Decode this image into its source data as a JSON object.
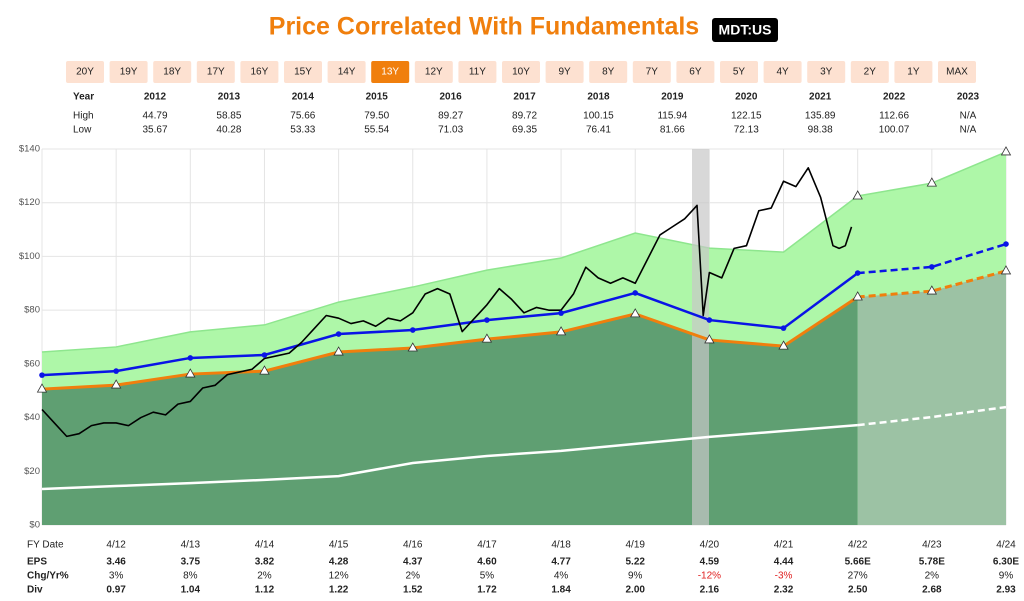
{
  "title": "Price Correlated With Fundamentals",
  "ticker": "MDT:US",
  "range_buttons": {
    "labels": [
      "20Y",
      "19Y",
      "18Y",
      "17Y",
      "16Y",
      "15Y",
      "14Y",
      "13Y",
      "12Y",
      "11Y",
      "10Y",
      "9Y",
      "8Y",
      "7Y",
      "6Y",
      "5Y",
      "4Y",
      "3Y",
      "2Y",
      "1Y",
      "MAX"
    ],
    "selected_index": 7
  },
  "year_table": {
    "header": "Year",
    "years": [
      "2012",
      "2013",
      "2014",
      "2015",
      "2016",
      "2017",
      "2018",
      "2019",
      "2020",
      "2021",
      "2022",
      "2023"
    ],
    "rows": [
      {
        "label": "High",
        "values": [
          "44.79",
          "58.85",
          "75.66",
          "79.50",
          "89.27",
          "89.72",
          "100.15",
          "115.94",
          "122.15",
          "135.89",
          "112.66",
          "N/A"
        ]
      },
      {
        "label": "Low",
        "values": [
          "35.67",
          "40.28",
          "53.33",
          "55.54",
          "71.03",
          "69.35",
          "76.41",
          "81.66",
          "72.13",
          "98.38",
          "100.07",
          "N/A"
        ]
      }
    ]
  },
  "chart_data": {
    "type": "line",
    "categories": [
      null,
      "4/12",
      "4/13",
      "4/14",
      "4/15",
      "4/16",
      "4/17",
      "4/18",
      "4/19",
      "4/20",
      "4/21",
      "4/22",
      "4/23",
      "4/24"
    ],
    "ylim": [
      0,
      140
    ],
    "yticks": [
      {
        "value": 0,
        "label": "$0"
      },
      {
        "value": 20,
        "label": "$20"
      },
      {
        "value": 40,
        "label": "$40"
      },
      {
        "value": 60,
        "label": "$60"
      },
      {
        "value": 80,
        "label": "$80"
      },
      {
        "value": 100,
        "label": "$100"
      },
      {
        "value": 120,
        "label": "$120"
      },
      {
        "value": 140,
        "label": "$140"
      }
    ],
    "grid": true,
    "series": [
      {
        "color": "#8ee68e",
        "fill": "#aef7a8",
        "values": [
          64.4,
          66.3,
          71.9,
          74.5,
          83.0,
          88.6,
          94.9,
          99.4,
          108.7,
          103.1,
          101.6,
          122.5,
          127.3,
          138.9
        ]
      },
      {
        "color": "#0a14e6",
        "values": [
          55.8,
          57.3,
          62.2,
          63.3,
          71.1,
          72.6,
          76.3,
          78.9,
          86.4,
          76.3,
          73.3,
          93.8,
          96.1,
          104.6
        ]
      },
      {
        "color": "#f07f0d",
        "fill": "#5f9f72",
        "estimate_fill": "#9cc2a4",
        "values": [
          50.6,
          52.1,
          56.2,
          57.3,
          64.4,
          65.9,
          69.2,
          71.9,
          78.6,
          68.9,
          66.6,
          84.9,
          87.1,
          94.6
        ]
      },
      {
        "color": "#ffffff",
        "values": [
          13.4,
          14.5,
          15.6,
          16.8,
          18.2,
          23.1,
          25.7,
          27.6,
          30.2,
          32.8,
          35.0,
          37.2,
          40.2,
          43.9
        ]
      }
    ],
    "price": {
      "color": "#000000",
      "x": [
        "4/11",
        "6/11",
        "8/11",
        "10/11",
        "12/11",
        "2/12",
        "4/12",
        "6/12",
        "8/12",
        "10/12",
        "12/12",
        "2/13",
        "4/13",
        "6/13",
        "8/13",
        "10/13",
        "12/13",
        "2/14",
        "4/14",
        "6/14",
        "8/14",
        "10/14",
        "12/14",
        "2/15",
        "4/15",
        "6/15",
        "8/15",
        "10/15",
        "12/15",
        "2/16",
        "4/16",
        "6/16",
        "8/16",
        "10/16",
        "12/16",
        "2/17",
        "4/17",
        "6/17",
        "8/17",
        "10/17",
        "12/17",
        "2/18",
        "4/18",
        "6/18",
        "8/18",
        "10/18",
        "12/18",
        "2/19",
        "4/19",
        "6/19",
        "8/19",
        "10/19",
        "12/19",
        "2/20",
        "3/20",
        "4/20",
        "6/20",
        "8/20",
        "10/20",
        "12/20",
        "2/21",
        "4/21",
        "6/21",
        "8/21",
        "10/21",
        "12/21",
        "1/22",
        "2/22",
        "3/22"
      ],
      "values": [
        43,
        38,
        33,
        34,
        37,
        38,
        38,
        37,
        40,
        42,
        41,
        45,
        46,
        51,
        52,
        56,
        57,
        58,
        62,
        63,
        64,
        68,
        73,
        78,
        77,
        75,
        76,
        74,
        77,
        76,
        79,
        86,
        88,
        86,
        72,
        77,
        82,
        88,
        84,
        79,
        81,
        80,
        80,
        86,
        96,
        92,
        90,
        92,
        90,
        99,
        108,
        111,
        114,
        119,
        78,
        94,
        92,
        103,
        104,
        117,
        118,
        128,
        126,
        133,
        122,
        104,
        103,
        104,
        111
      ]
    },
    "fundamentals": {
      "header": "FY Date",
      "rows": [
        {
          "label": "EPS",
          "values": [
            null,
            3.46,
            3.75,
            3.82,
            4.28,
            4.37,
            4.6,
            4.77,
            5.22,
            4.59,
            4.44,
            5.66,
            5.78,
            6.3
          ],
          "value_labels": [
            null,
            "3.46",
            "3.75",
            "3.82",
            "4.28",
            "4.37",
            "4.60",
            "4.77",
            "5.22",
            "4.59",
            "4.44",
            "5.66E",
            "5.78E",
            "6.30E"
          ]
        },
        {
          "label": "Chg/Yr%",
          "values": [
            null,
            3,
            8,
            2,
            12,
            2,
            5,
            4,
            9,
            -12,
            -3,
            27,
            2,
            9
          ],
          "value_labels": [
            null,
            "3%",
            "8%",
            "2%",
            "12%",
            "2%",
            "5%",
            "4%",
            "9%",
            "-12%",
            "-3%",
            "27%",
            "2%",
            "9%"
          ],
          "negative_color": "#e02020"
        },
        {
          "label": "Div",
          "values": [
            null,
            0.97,
            1.04,
            1.12,
            1.22,
            1.52,
            1.72,
            1.84,
            2.0,
            2.16,
            2.32,
            2.5,
            2.68,
            2.93
          ],
          "value_labels": [
            null,
            "0.97",
            "1.04",
            "1.12",
            "1.22",
            "1.52",
            "1.72",
            "1.84",
            "2.00",
            "2.16",
            "2.32",
            "2.50",
            "2.68",
            "2.93"
          ]
        }
      ]
    }
  }
}
